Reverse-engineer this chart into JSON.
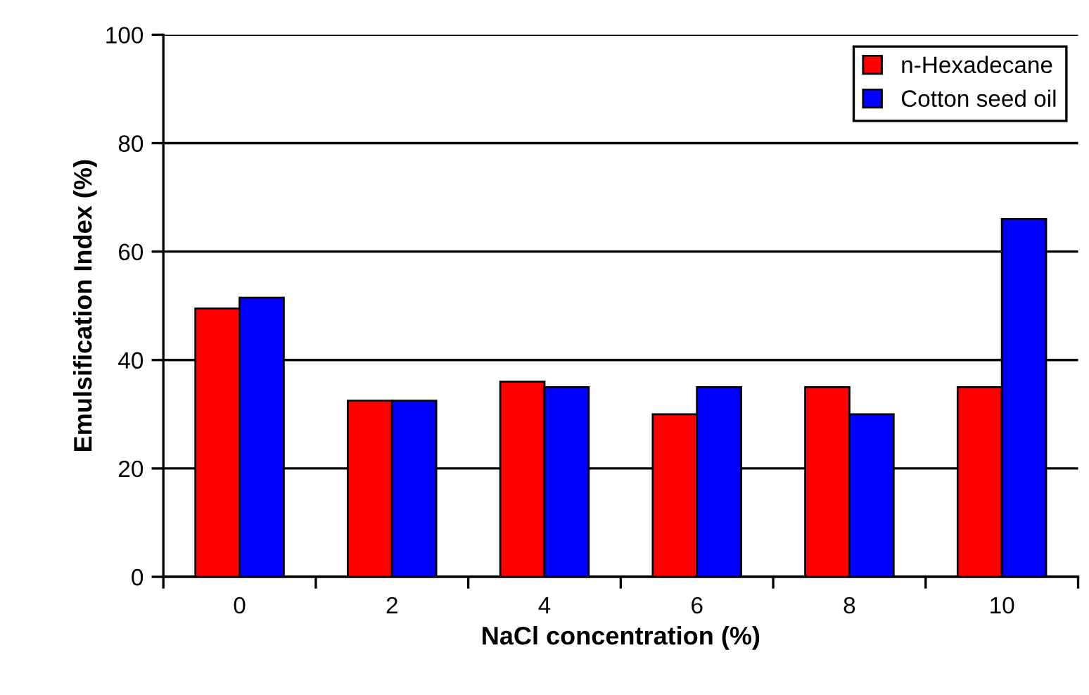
{
  "chart_data": {
    "type": "bar",
    "xlabel": "NaCl concentration (%)",
    "ylabel": "Emulsification Index (%)",
    "categories": [
      "0",
      "2",
      "4",
      "6",
      "8",
      "10"
    ],
    "series": [
      {
        "name": "n-Hexadecane",
        "color": "#ff0000",
        "values": [
          49.5,
          32.5,
          36,
          30,
          35,
          35
        ]
      },
      {
        "name": "Cotton seed oil",
        "color": "#0000ff",
        "values": [
          51.5,
          32.5,
          35,
          35,
          30,
          66
        ]
      }
    ],
    "ylim": [
      0,
      100
    ],
    "yticks": [
      0,
      20,
      40,
      60,
      80,
      100
    ],
    "grid": "y",
    "legend": "top right"
  }
}
